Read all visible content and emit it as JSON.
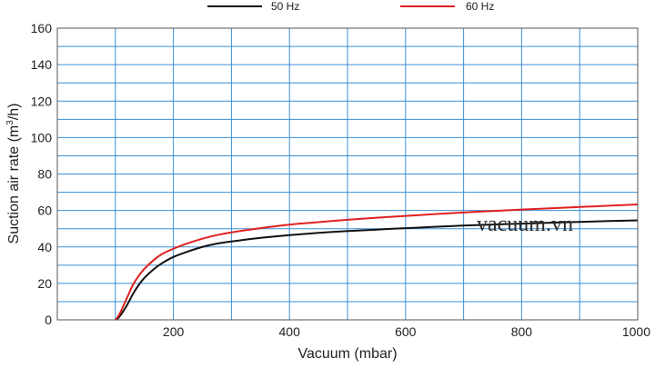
{
  "chart_data": {
    "type": "line",
    "title": "",
    "xlabel": "Vacuum (mbar)",
    "ylabel_prefix": "Suction air rate (m",
    "ylabel_sup": "3",
    "ylabel_suffix": "/h)",
    "xlim": [
      0,
      1000
    ],
    "ylim": [
      0,
      160
    ],
    "x_ticks": [
      200,
      400,
      600,
      800,
      1000
    ],
    "y_ticks": [
      0,
      20,
      40,
      60,
      80,
      100,
      120,
      140,
      160
    ],
    "grid": true,
    "grid_color": "#3a8fd6",
    "legend_position": "top-center",
    "series": [
      {
        "name": "50 Hz",
        "color": "#111111",
        "x": [
          100,
          105,
          110,
          120,
          130,
          140,
          150,
          165,
          180,
          200,
          225,
          250,
          275,
          300,
          350,
          400,
          450,
          500,
          550,
          600,
          650,
          700,
          750,
          800,
          850,
          900,
          950,
          1000
        ],
        "y": [
          0,
          1,
          3,
          8,
          14,
          19,
          23,
          27.5,
          31,
          34.5,
          37.5,
          40,
          41.8,
          43,
          45,
          46.5,
          47.7,
          48.7,
          49.5,
          50.3,
          51,
          51.7,
          52.3,
          52.8,
          53.3,
          53.7,
          54.2,
          54.6
        ]
      },
      {
        "name": "60 Hz",
        "color": "#e02020",
        "x": [
          100,
          105,
          110,
          120,
          130,
          140,
          150,
          165,
          180,
          200,
          225,
          250,
          275,
          300,
          350,
          400,
          450,
          500,
          550,
          600,
          650,
          700,
          750,
          800,
          850,
          900,
          950,
          1000
        ],
        "y": [
          0,
          2,
          5,
          12,
          19,
          24,
          28,
          32.5,
          36,
          39,
          42,
          44.5,
          46.5,
          48,
          50.3,
          52.2,
          53.6,
          54.9,
          56,
          57,
          58,
          58.9,
          59.7,
          60.5,
          61.2,
          61.9,
          62.6,
          63.3
        ]
      }
    ],
    "annotations": [
      "vacuum.vn"
    ]
  }
}
